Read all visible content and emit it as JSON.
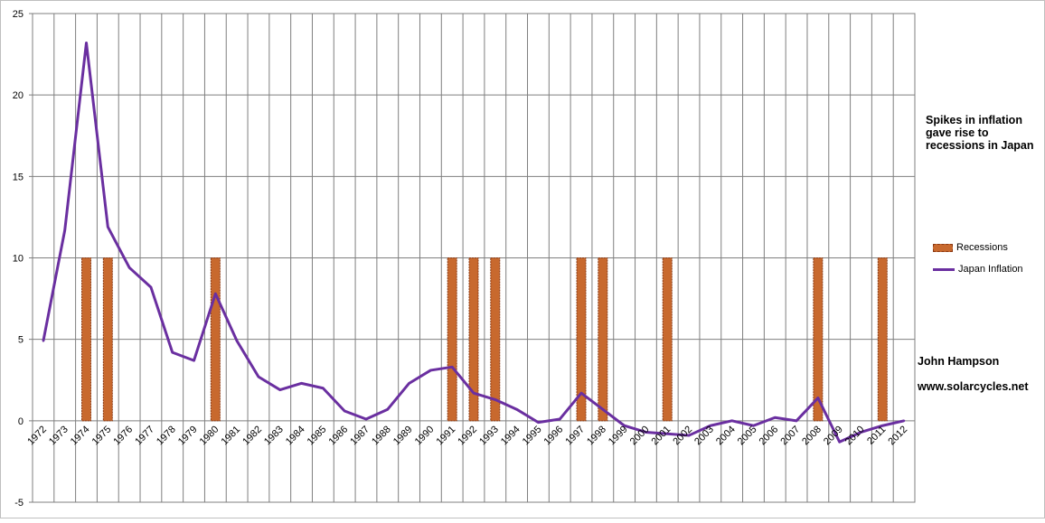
{
  "chart_data": {
    "type": "bar+line",
    "title": "",
    "xlabel": "",
    "ylabel": "",
    "ylim": [
      -5,
      25
    ],
    "yticks": [
      -5,
      0,
      5,
      10,
      15,
      20,
      25
    ],
    "grid": true,
    "legend_position": "right",
    "categories": [
      "1972",
      "1973",
      "1974",
      "1975",
      "1976",
      "1977",
      "1978",
      "1979",
      "1980",
      "1981",
      "1982",
      "1983",
      "1984",
      "1985",
      "1986",
      "1987",
      "1988",
      "1989",
      "1990",
      "1991",
      "1992",
      "1993",
      "1994",
      "1995",
      "1996",
      "1997",
      "1998",
      "1999",
      "2000",
      "2001",
      "2002",
      "2003",
      "2004",
      "2005",
      "2006",
      "2007",
      "2008",
      "2009",
      "2010",
      "2011",
      "2012"
    ],
    "series": [
      {
        "name": "Recessions",
        "kind": "bar",
        "color": "#c8692e",
        "values": [
          0,
          0,
          10,
          10,
          0,
          0,
          0,
          0,
          10,
          0,
          0,
          0,
          0,
          0,
          0,
          0,
          0,
          0,
          0,
          10,
          10,
          10,
          0,
          0,
          0,
          10,
          10,
          0,
          0,
          10,
          0,
          0,
          0,
          0,
          0,
          0,
          10,
          0,
          0,
          10,
          0
        ]
      },
      {
        "name": "Japan Inflation",
        "kind": "line",
        "color": "#6a2fa0",
        "values": [
          4.9,
          11.7,
          23.2,
          11.9,
          9.4,
          8.2,
          4.2,
          3.7,
          7.8,
          4.9,
          2.7,
          1.9,
          2.3,
          2.0,
          0.6,
          0.1,
          0.7,
          2.3,
          3.1,
          3.3,
          1.7,
          1.3,
          0.7,
          -0.1,
          0.1,
          1.7,
          0.7,
          -0.3,
          -0.7,
          -0.8,
          -0.9,
          -0.3,
          0.0,
          -0.3,
          0.2,
          0.0,
          1.4,
          -1.3,
          -0.7,
          -0.3,
          0.0
        ]
      }
    ]
  },
  "annotations": {
    "title_note": "Spikes in inflation gave rise to recessions in Japan",
    "author": "John Hampson",
    "website": "www.solarcycles.net"
  },
  "legend": {
    "recessions": "Recessions",
    "inflation": "Japan Inflation"
  }
}
